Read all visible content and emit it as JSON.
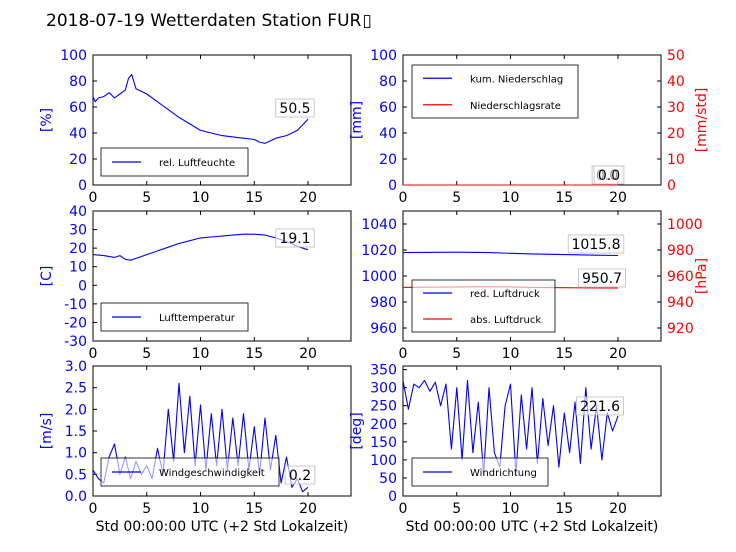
{
  "title": "2018-07-19 Wetterdaten Station FUR",
  "title_glyph": "▯",
  "colors": {
    "primary": "#0000ff",
    "secondary": "#ff0000",
    "axis": "#000000"
  },
  "chart_data": [
    {
      "id": "humidity",
      "type": "line",
      "ylabel": "[%]",
      "ylim": [
        0,
        100
      ],
      "yticks": [
        0,
        20,
        40,
        60,
        80,
        100
      ],
      "xlim": [
        0,
        24
      ],
      "xticks": [
        0,
        5,
        10,
        15,
        20
      ],
      "xlabel": "",
      "annotation": "50.5",
      "legend_placement": "lower-left",
      "series": [
        {
          "name": "rel. Luftfeuchte",
          "color": "#0000ff",
          "x": [
            0,
            0.2,
            0.5,
            1,
            1.5,
            2,
            2.5,
            3,
            3.3,
            3.6,
            4,
            5,
            6,
            7,
            8,
            9,
            10,
            11,
            12,
            13,
            14,
            15,
            15.5,
            16,
            17,
            18,
            19,
            20
          ],
          "y": [
            68,
            64,
            67,
            68,
            71,
            67,
            70,
            73,
            82,
            85,
            74,
            70,
            64,
            58,
            52,
            47,
            42,
            40,
            38,
            37,
            36,
            35,
            33,
            32,
            36,
            38,
            42,
            50.5
          ]
        }
      ]
    },
    {
      "id": "precipitation",
      "type": "line",
      "ylabel": "[mm]",
      "ylim": [
        0,
        100
      ],
      "yticks": [
        0,
        20,
        40,
        60,
        80,
        100
      ],
      "y2label": "[mm/std]",
      "y2lim": [
        0,
        50
      ],
      "y2ticks": [
        0,
        10,
        20,
        30,
        40,
        50
      ],
      "xlim": [
        0,
        24
      ],
      "xticks": [
        0,
        5,
        10,
        15,
        20
      ],
      "xlabel": "",
      "annotations": [
        "0.0",
        "0.0"
      ],
      "legend_placement": "upper-left",
      "series": [
        {
          "name": "kum. Niederschlag",
          "color": "#0000ff",
          "axis": "left",
          "x": [
            0,
            20
          ],
          "y": [
            0,
            0
          ]
        },
        {
          "name": "Niederschlagsrate",
          "color": "#ff0000",
          "axis": "right",
          "x": [
            0,
            20
          ],
          "y": [
            0,
            0
          ]
        }
      ]
    },
    {
      "id": "temperature",
      "type": "line",
      "ylabel": "[C]",
      "ylim": [
        -30,
        40
      ],
      "yticks": [
        -30,
        -20,
        -10,
        0,
        10,
        20,
        30,
        40
      ],
      "xlim": [
        0,
        24
      ],
      "xticks": [
        0,
        5,
        10,
        15,
        20
      ],
      "xlabel": "",
      "annotation": "19.1",
      "legend_placement": "lower-left",
      "series": [
        {
          "name": "Lufttemperatur",
          "color": "#0000ff",
          "x": [
            0,
            1,
            2,
            2.5,
            3,
            3.5,
            4,
            5,
            6,
            7,
            8,
            9,
            10,
            11,
            12,
            13,
            14,
            15,
            16,
            17,
            18,
            19,
            20
          ],
          "y": [
            16.5,
            16,
            15,
            16,
            14,
            13.5,
            14.5,
            16.5,
            18.5,
            20.5,
            22.5,
            24,
            25.5,
            26,
            26.5,
            27,
            27.5,
            27.5,
            27,
            25.5,
            23.5,
            21,
            19.1
          ]
        }
      ]
    },
    {
      "id": "pressure",
      "type": "line",
      "ylabel": "",
      "ylim": [
        950,
        1050
      ],
      "yticks": [
        960,
        980,
        1000,
        1020,
        1040
      ],
      "y2label": "[hPa]",
      "y2lim": [
        910,
        1010
      ],
      "y2ticks": [
        920,
        940,
        960,
        980,
        1000
      ],
      "xlim": [
        0,
        24
      ],
      "xticks": [
        0,
        5,
        10,
        15,
        20
      ],
      "xlabel": "",
      "annotations": [
        "1015.8",
        "950.7"
      ],
      "legend_placement": "lower-left",
      "series": [
        {
          "name": "red. Luftdruck",
          "color": "#0000ff",
          "axis": "left",
          "x": [
            0,
            5,
            8,
            10,
            12,
            15,
            18,
            20
          ],
          "y": [
            1018,
            1018.3,
            1018,
            1017.5,
            1017,
            1016.5,
            1016,
            1015.8
          ]
        },
        {
          "name": "abs. Luftdruck",
          "color": "#ff0000",
          "axis": "right",
          "x": [
            0,
            5,
            8,
            10,
            12,
            15,
            18,
            20
          ],
          "y": [
            951.2,
            951.6,
            951.8,
            951.6,
            951.2,
            951.0,
            950.8,
            950.7
          ]
        }
      ]
    },
    {
      "id": "wind_speed",
      "type": "line",
      "ylabel": "[m/s]",
      "ylim": [
        0,
        3.0
      ],
      "yticks": [
        0.0,
        0.5,
        1.0,
        1.5,
        2.0,
        2.5,
        3.0
      ],
      "xlim": [
        0,
        24
      ],
      "xticks": [
        0,
        5,
        10,
        15,
        20
      ],
      "xlabel": "Std 00:00:00 UTC (+2 Std Lokalzeit)",
      "annotation": "0.2",
      "legend_placement": "lower-left",
      "series": [
        {
          "name": "Windgeschwindigkeit",
          "color": "#0000ff",
          "x": [
            0,
            0.5,
            1,
            1.5,
            2,
            2.5,
            3,
            3.5,
            4,
            4.5,
            5,
            5.5,
            6,
            6.5,
            7,
            7.5,
            8,
            8.5,
            9,
            9.5,
            10,
            10.5,
            11,
            11.5,
            12,
            12.5,
            13,
            13.5,
            14,
            14.5,
            15,
            15.5,
            16,
            16.5,
            17,
            17.5,
            18,
            18.5,
            19,
            19.5,
            20
          ],
          "y": [
            0.6,
            0.4,
            0.3,
            0.9,
            1.2,
            0.5,
            0.9,
            0.4,
            0.8,
            0.5,
            0.7,
            0.4,
            1.1,
            0.5,
            2.0,
            0.8,
            2.6,
            1.0,
            2.3,
            0.7,
            2.1,
            0.6,
            1.9,
            0.7,
            2.0,
            0.6,
            1.8,
            0.7,
            1.9,
            0.6,
            1.6,
            0.5,
            1.8,
            0.6,
            1.4,
            0.3,
            0.9,
            0.2,
            0.4,
            0.1,
            0.2
          ]
        }
      ]
    },
    {
      "id": "wind_direction",
      "type": "line",
      "ylabel": "[deg]",
      "ylim": [
        0,
        360
      ],
      "yticks": [
        0,
        50,
        100,
        150,
        200,
        250,
        300,
        350
      ],
      "xlim": [
        0,
        24
      ],
      "xticks": [
        0,
        5,
        10,
        15,
        20
      ],
      "xlabel": "Std 00:00:00 UTC (+2 Std Lokalzeit)",
      "annotation": "221.6",
      "legend_placement": "lower-left",
      "series": [
        {
          "name": "Windrichtung",
          "color": "#0000ff",
          "x": [
            0,
            0.5,
            1,
            1.5,
            2,
            2.5,
            3,
            3.5,
            4,
            4.5,
            5,
            5.5,
            6,
            6.5,
            7,
            7.5,
            8,
            8.5,
            9,
            9.5,
            10,
            10.5,
            11,
            11.5,
            12,
            12.5,
            13,
            13.5,
            14,
            14.5,
            15,
            15.5,
            16,
            16.5,
            17,
            17.5,
            18,
            18.5,
            19,
            19.5,
            20
          ],
          "y": [
            320,
            240,
            310,
            300,
            320,
            290,
            315,
            250,
            310,
            130,
            300,
            100,
            320,
            120,
            260,
            60,
            300,
            120,
            80,
            250,
            310,
            60,
            280,
            130,
            300,
            90,
            270,
            140,
            250,
            80,
            230,
            120,
            260,
            90,
            300,
            130,
            250,
            100,
            230,
            180,
            221.6
          ]
        }
      ]
    }
  ]
}
